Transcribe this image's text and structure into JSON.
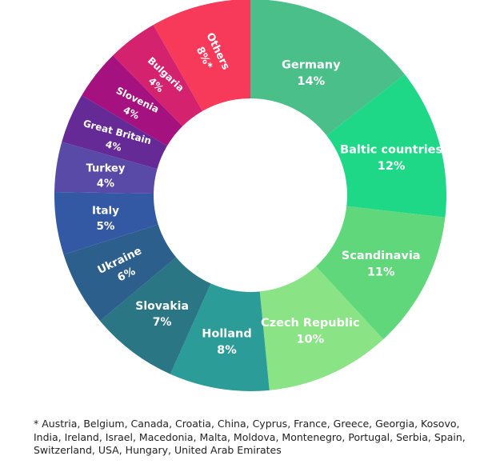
{
  "chart_data": {
    "type": "pie",
    "style": "donut",
    "unit": "%",
    "slices": [
      {
        "name": "Germany",
        "value": 14,
        "label": "14%",
        "color": "#4bbf8a"
      },
      {
        "name": "Baltic countries",
        "value": 12,
        "label": "12%",
        "color": "#1ed787"
      },
      {
        "name": "Scandinavia",
        "value": 11,
        "label": "11%",
        "color": "#5fd77a"
      },
      {
        "name": "Czech Republic",
        "value": 10,
        "label": "10%",
        "color": "#8ae384"
      },
      {
        "name": "Holland",
        "value": 8,
        "label": "8%",
        "color": "#2c9c99"
      },
      {
        "name": "Slovakia",
        "value": 7,
        "label": "7%",
        "color": "#2a7685"
      },
      {
        "name": "Ukraine",
        "value": 6,
        "label": "6%",
        "color": "#2d5f8c"
      },
      {
        "name": "Italy",
        "value": 5,
        "label": "5%",
        "color": "#3459a4"
      },
      {
        "name": "Turkey",
        "value": 4,
        "label": "4%",
        "color": "#5a4aa8"
      },
      {
        "name": "Great Britain",
        "value": 4,
        "label": "4%",
        "color": "#662a96"
      },
      {
        "name": "Slovenia",
        "value": 4,
        "label": "4%",
        "color": "#a5117f"
      },
      {
        "name": "Bulgaria",
        "value": 4,
        "label": "4%",
        "color": "#d5226f"
      },
      {
        "name": "Others",
        "value": 8,
        "label": "8%*",
        "color": "#f73a5a"
      }
    ]
  },
  "footnote": "* Austria, Belgium, Canada, Croatia, China, Cyprus, France, Greece, Georgia, Kosovo, India, Ireland, Israel, Macedonia, Malta, Moldova, Montenegro, Portugal, Serbia, Spain, Switzerland, USA, Hungary, United Arab Emirates"
}
